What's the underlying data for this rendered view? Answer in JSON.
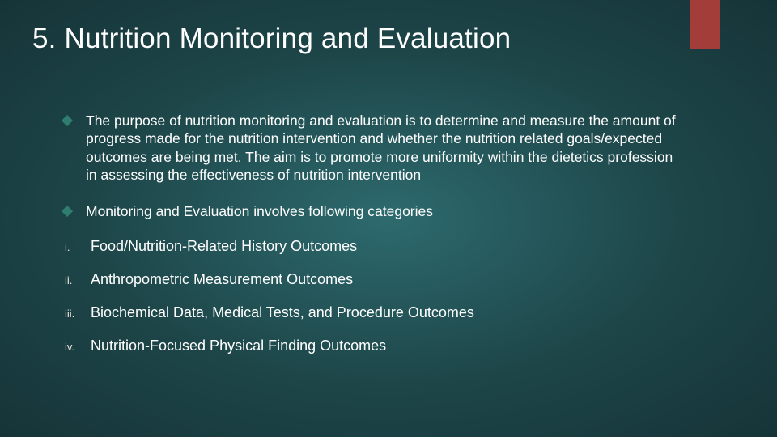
{
  "accent_color": "#a33d3a",
  "diamond_color": "#2e7d6f",
  "background_gradient": {
    "center": "#2d6a6e",
    "mid": "#1d4548",
    "edge": "#163438"
  },
  "title": "5. Nutrition Monitoring and Evaluation",
  "title_fontsize": 35,
  "body_fontsize": 17.5,
  "roman_text_fontsize": 18,
  "roman_marker_fontsize": 13,
  "bullets": [
    "The purpose of nutrition monitoring and evaluation is to determine and measure the amount of progress made for the nutrition intervention and whether the nutrition related goals/expected outcomes are being met. The aim is to promote more uniformity within the dietetics profession in assessing the effectiveness of nutrition intervention",
    "Monitoring and Evaluation involves following categories"
  ],
  "roman_items": [
    {
      "marker": "i.",
      "text": "Food/Nutrition-Related History Outcomes"
    },
    {
      "marker": "ii.",
      "text": "Anthropometric Measurement Outcomes"
    },
    {
      "marker": "iii.",
      "text": "Biochemical Data, Medical Tests, and Procedure Outcomes"
    },
    {
      "marker": "iv.",
      "text": "Nutrition-Focused Physical Finding Outcomes"
    }
  ]
}
